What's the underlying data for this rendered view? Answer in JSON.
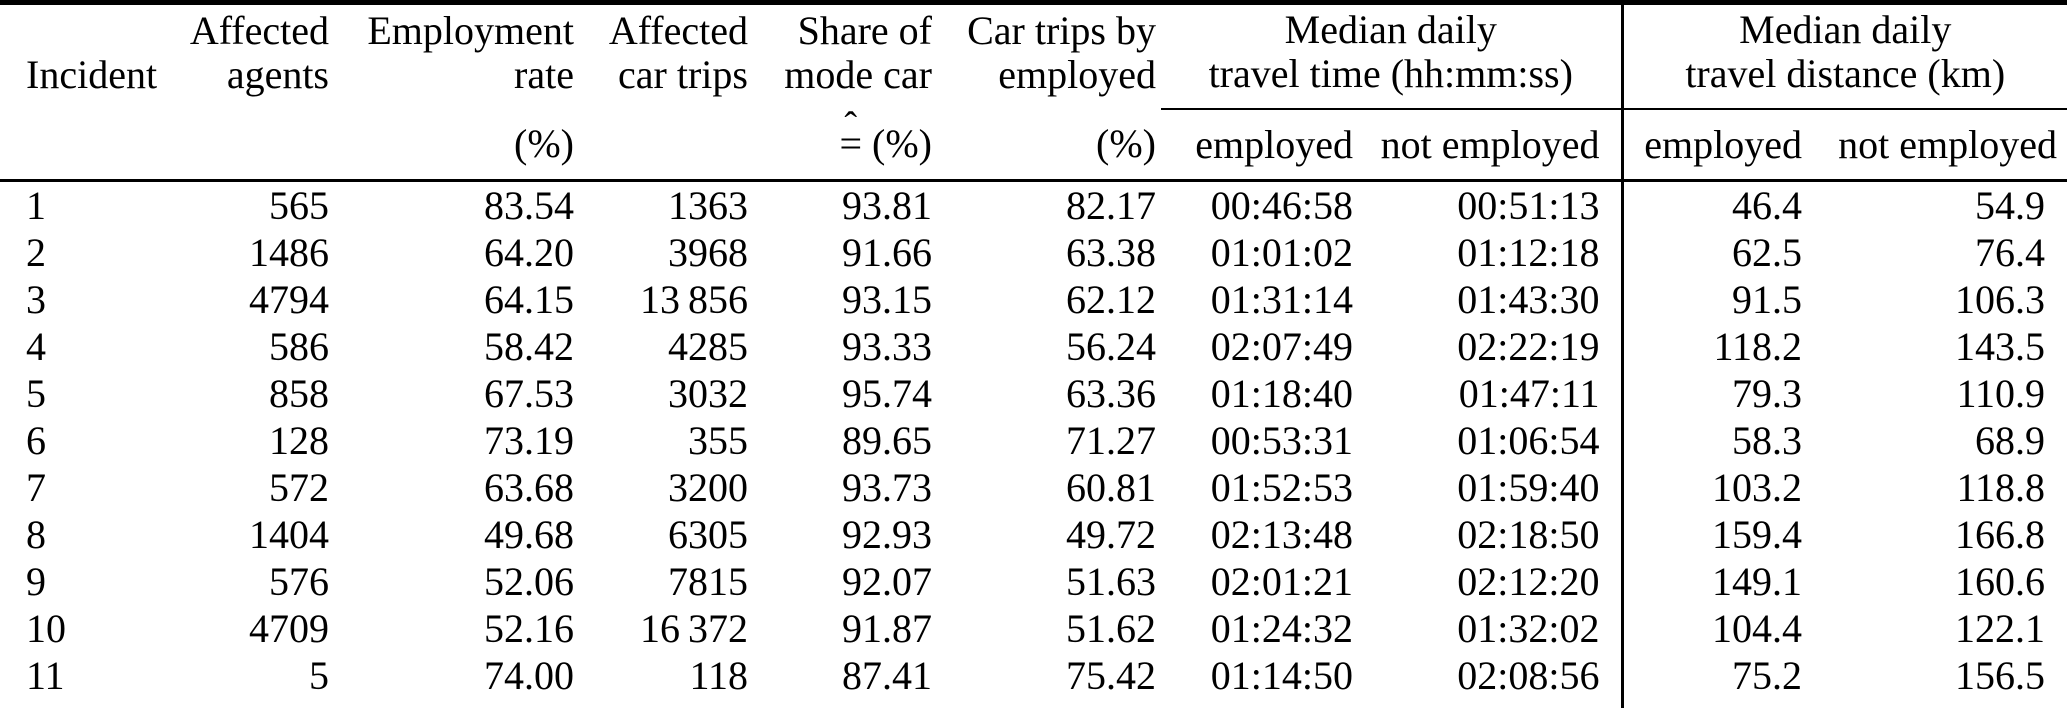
{
  "table": {
    "header": {
      "col1": {
        "line2": "Incident"
      },
      "col2": {
        "line1": "Affected",
        "line2": "agents"
      },
      "col3": {
        "line1": "Employment",
        "line2": "rate",
        "unit": "(%)"
      },
      "col4": {
        "line1": "Affected",
        "line2": "car trips"
      },
      "col5": {
        "line1": "Share of",
        "line2": "mode car",
        "unit_hat": "ˆ",
        "unit_eq": "=",
        "unit_text": "(%)"
      },
      "col6": {
        "line1": "Car trips by",
        "line2": "employed",
        "unit": "(%)"
      },
      "group_time": {
        "line1": "Median daily",
        "line2": "travel time (hh:mm:ss)",
        "sub1": "employed",
        "sub2": "not employed"
      },
      "group_dist": {
        "line1": "Median daily",
        "line2": "travel distance (km)",
        "sub1": "employed",
        "sub2": "not employed"
      }
    },
    "rows": [
      [
        "1",
        "565",
        "83.54",
        "1363",
        "93.81",
        "82.17",
        "00:46:58",
        "00:51:13",
        "46.4",
        "54.9"
      ],
      [
        "2",
        "1486",
        "64.20",
        "3968",
        "91.66",
        "63.38",
        "01:01:02",
        "01:12:18",
        "62.5",
        "76.4"
      ],
      [
        "3",
        "4794",
        "64.15",
        "13 856",
        "93.15",
        "62.12",
        "01:31:14",
        "01:43:30",
        "91.5",
        "106.3"
      ],
      [
        "4",
        "586",
        "58.42",
        "4285",
        "93.33",
        "56.24",
        "02:07:49",
        "02:22:19",
        "118.2",
        "143.5"
      ],
      [
        "5",
        "858",
        "67.53",
        "3032",
        "95.74",
        "63.36",
        "01:18:40",
        "01:47:11",
        "79.3",
        "110.9"
      ],
      [
        "6",
        "128",
        "73.19",
        "355",
        "89.65",
        "71.27",
        "00:53:31",
        "01:06:54",
        "58.3",
        "68.9"
      ],
      [
        "7",
        "572",
        "63.68",
        "3200",
        "93.73",
        "60.81",
        "01:52:53",
        "01:59:40",
        "103.2",
        "118.8"
      ],
      [
        "8",
        "1404",
        "49.68",
        "6305",
        "92.93",
        "49.72",
        "02:13:48",
        "02:18:50",
        "159.4",
        "166.8"
      ],
      [
        "9",
        "576",
        "52.06",
        "7815",
        "92.07",
        "51.63",
        "02:01:21",
        "02:12:20",
        "149.1",
        "160.6"
      ],
      [
        "10",
        "4709",
        "52.16",
        "16 372",
        "91.87",
        "51.62",
        "01:24:32",
        "01:32:02",
        "104.4",
        "122.1"
      ],
      [
        "11",
        "5",
        "74.00",
        "118",
        "87.41",
        "75.42",
        "01:14:50",
        "02:08:56",
        "75.2",
        "156.5"
      ]
    ]
  }
}
